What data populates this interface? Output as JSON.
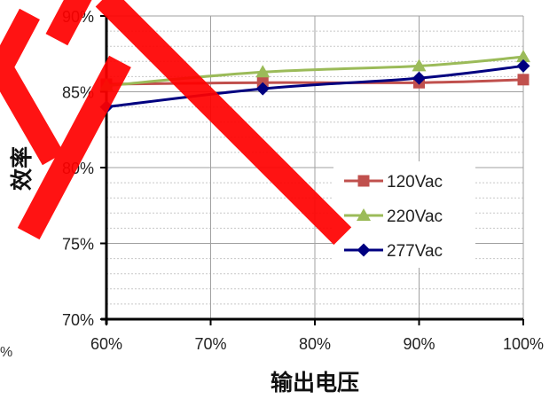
{
  "chart_data": {
    "type": "line",
    "x": [
      60,
      75,
      90,
      100
    ],
    "xlim": [
      60,
      100
    ],
    "ylim": [
      70,
      90
    ],
    "x_ticks": [
      "60%",
      "70%",
      "80%",
      "90%",
      "100%"
    ],
    "y_ticks": [
      "70%",
      "75%",
      "80%",
      "85%",
      "90%"
    ],
    "xlabel": "输出电压",
    "ylabel": "效率",
    "grid": true,
    "legend_position": "right-center",
    "series": [
      {
        "name": "120Vac",
        "values": [
          85.5,
          85.6,
          85.6,
          85.8
        ],
        "color": "#c0504d",
        "marker": "square"
      },
      {
        "name": "220Vac",
        "values": [
          85.4,
          86.3,
          86.7,
          87.3
        ],
        "color": "#9bbb59",
        "marker": "triangle"
      },
      {
        "name": "277Vac",
        "values": [
          84.0,
          85.2,
          85.9,
          86.7
        ],
        "color": "#000080",
        "marker": "diamond"
      }
    ]
  },
  "stray_text": "%",
  "watermark_color": "#ff0000"
}
